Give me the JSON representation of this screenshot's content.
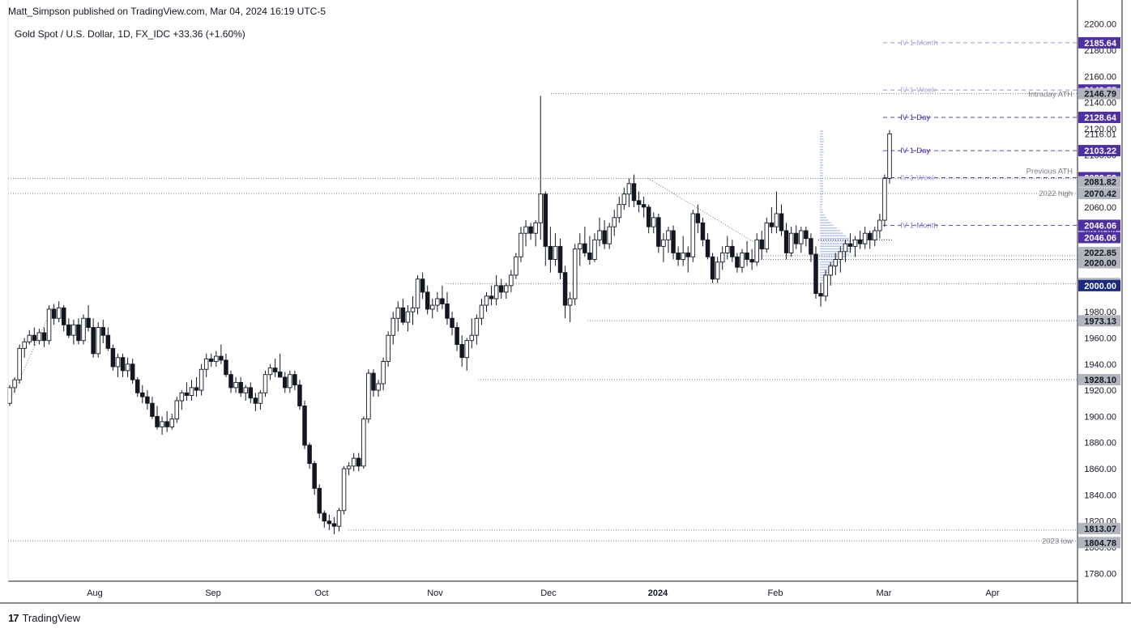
{
  "header": {
    "publisher": "Matt_Simpson published on TradingView.com, Mar 04, 2024 16:19 UTC-5",
    "symbol_line": "Gold Spot / U.S. Dollar, 1D, FX_IDC  +33.36 (+1.60%)"
  },
  "footer": {
    "logo_mark": "17",
    "logo_text": "TradingView"
  },
  "chart_data": {
    "type": "candlestick",
    "y_ticks": [
      "2200.00",
      "2180.00",
      "2160.00",
      "2140.00",
      "2120.00",
      "2100.00",
      "2080.00",
      "2060.00",
      "2040.00",
      "2020.00",
      "2000.00",
      "1980.00",
      "1960.00",
      "1940.00",
      "1920.00",
      "1900.00",
      "1880.00",
      "1860.00",
      "1840.00",
      "1820.00",
      "1800.00",
      "1780.00"
    ],
    "ylim": [
      1774,
      2206
    ],
    "x_labels": [
      "Aug",
      "Sep",
      "Oct",
      "Nov",
      "Dec",
      "2024",
      "Feb",
      "Mar",
      "Apr"
    ],
    "x_label_bold": [
      false,
      false,
      false,
      false,
      false,
      true,
      false,
      false,
      false
    ],
    "candles": [
      [
        1910,
        1924,
        1908,
        1922
      ],
      [
        1922,
        1930,
        1918,
        1928
      ],
      [
        1928,
        1955,
        1925,
        1952
      ],
      [
        1952,
        1960,
        1945,
        1957
      ],
      [
        1957,
        1966,
        1955,
        1962
      ],
      [
        1962,
        1968,
        1954,
        1958
      ],
      [
        1958,
        1967,
        1955,
        1964
      ],
      [
        1964,
        1968,
        1953,
        1958
      ],
      [
        1958,
        1985,
        1955,
        1982
      ],
      [
        1982,
        1986,
        1970,
        1975
      ],
      [
        1975,
        1988,
        1972,
        1983
      ],
      [
        1983,
        1985,
        1965,
        1970
      ],
      [
        1970,
        1975,
        1960,
        1962
      ],
      [
        1962,
        1974,
        1955,
        1970
      ],
      [
        1970,
        1975,
        1955,
        1958
      ],
      [
        1958,
        1978,
        1955,
        1975
      ],
      [
        1975,
        1985,
        1965,
        1968
      ],
      [
        1968,
        1975,
        1945,
        1948
      ],
      [
        1948,
        1972,
        1945,
        1968
      ],
      [
        1968,
        1974,
        1956,
        1962
      ],
      [
        1962,
        1968,
        1950,
        1952
      ],
      [
        1952,
        1955,
        1935,
        1938
      ],
      [
        1938,
        1948,
        1930,
        1945
      ],
      [
        1945,
        1948,
        1930,
        1935
      ],
      [
        1935,
        1945,
        1930,
        1940
      ],
      [
        1940,
        1944,
        1925,
        1928
      ],
      [
        1928,
        1930,
        1915,
        1918
      ],
      [
        1918,
        1924,
        1910,
        1915
      ],
      [
        1915,
        1920,
        1905,
        1910
      ],
      [
        1910,
        1915,
        1898,
        1900
      ],
      [
        1900,
        1908,
        1890,
        1892
      ],
      [
        1892,
        1900,
        1886,
        1896
      ],
      [
        1896,
        1904,
        1888,
        1892
      ],
      [
        1892,
        1902,
        1890,
        1898
      ],
      [
        1898,
        1915,
        1895,
        1912
      ],
      [
        1912,
        1920,
        1905,
        1918
      ],
      [
        1918,
        1926,
        1912,
        1916
      ],
      [
        1916,
        1928,
        1912,
        1922
      ],
      [
        1922,
        1930,
        1915,
        1920
      ],
      [
        1920,
        1940,
        1916,
        1936
      ],
      [
        1936,
        1948,
        1930,
        1944
      ],
      [
        1944,
        1948,
        1938,
        1942
      ],
      [
        1942,
        1950,
        1938,
        1946
      ],
      [
        1946,
        1955,
        1940,
        1943
      ],
      [
        1943,
        1948,
        1930,
        1932
      ],
      [
        1932,
        1935,
        1918,
        1922
      ],
      [
        1922,
        1930,
        1918,
        1926
      ],
      [
        1926,
        1930,
        1915,
        1918
      ],
      [
        1918,
        1924,
        1912,
        1922
      ],
      [
        1922,
        1926,
        1910,
        1914
      ],
      [
        1914,
        1918,
        1904,
        1910
      ],
      [
        1910,
        1920,
        1905,
        1918
      ],
      [
        1918,
        1935,
        1915,
        1932
      ],
      [
        1932,
        1940,
        1928,
        1937
      ],
      [
        1937,
        1944,
        1930,
        1934
      ],
      [
        1934,
        1948,
        1930,
        1930
      ],
      [
        1930,
        1934,
        1918,
        1922
      ],
      [
        1922,
        1935,
        1918,
        1932
      ],
      [
        1932,
        1935,
        1920,
        1924
      ],
      [
        1924,
        1928,
        1905,
        1908
      ],
      [
        1908,
        1912,
        1875,
        1878
      ],
      [
        1878,
        1880,
        1860,
        1864
      ],
      [
        1864,
        1866,
        1840,
        1845
      ],
      [
        1845,
        1848,
        1822,
        1826
      ],
      [
        1826,
        1828,
        1815,
        1820
      ],
      [
        1820,
        1825,
        1813,
        1818
      ],
      [
        1818,
        1823,
        1810,
        1816
      ],
      [
        1816,
        1830,
        1812,
        1828
      ],
      [
        1828,
        1862,
        1825,
        1860
      ],
      [
        1860,
        1865,
        1855,
        1862
      ],
      [
        1862,
        1872,
        1858,
        1868
      ],
      [
        1868,
        1872,
        1858,
        1862
      ],
      [
        1862,
        1900,
        1860,
        1898
      ],
      [
        1898,
        1936,
        1895,
        1933
      ],
      [
        1933,
        1936,
        1915,
        1920
      ],
      [
        1920,
        1928,
        1915,
        1925
      ],
      [
        1925,
        1945,
        1920,
        1942
      ],
      [
        1942,
        1965,
        1938,
        1962
      ],
      [
        1962,
        1980,
        1955,
        1975
      ],
      [
        1975,
        1988,
        1965,
        1983
      ],
      [
        1983,
        1990,
        1970,
        1972
      ],
      [
        1972,
        1985,
        1965,
        1980
      ],
      [
        1980,
        1992,
        1970,
        1983
      ],
      [
        1983,
        2008,
        1978,
        2005
      ],
      [
        2005,
        2010,
        1990,
        1995
      ],
      [
        1995,
        2000,
        1978,
        1982
      ],
      [
        1982,
        1990,
        1975,
        1985
      ],
      [
        1985,
        1995,
        1980,
        1990
      ],
      [
        1990,
        2000,
        1982,
        1986
      ],
      [
        1986,
        1995,
        1970,
        1975
      ],
      [
        1975,
        1980,
        1962,
        1968
      ],
      [
        1968,
        1972,
        1950,
        1955
      ],
      [
        1955,
        1962,
        1938,
        1945
      ],
      [
        1945,
        1960,
        1935,
        1958
      ],
      [
        1958,
        1975,
        1952,
        1962
      ],
      [
        1962,
        1978,
        1955,
        1975
      ],
      [
        1975,
        1990,
        1970,
        1985
      ],
      [
        1985,
        1995,
        1980,
        1992
      ],
      [
        1992,
        2000,
        1985,
        1990
      ],
      [
        1990,
        2008,
        1985,
        2000
      ],
      [
        2000,
        2005,
        1990,
        1995
      ],
      [
        1995,
        2002,
        1990,
        2000
      ],
      [
        2000,
        2012,
        1995,
        2008
      ],
      [
        2008,
        2025,
        2005,
        2022
      ],
      [
        2022,
        2045,
        2018,
        2040
      ],
      [
        2040,
        2050,
        2030,
        2045
      ],
      [
        2045,
        2048,
        2035,
        2040
      ],
      [
        2040,
        2050,
        2030,
        2048
      ],
      [
        2048,
        2145,
        2035,
        2070
      ],
      [
        2070,
        2072,
        2015,
        2030
      ],
      [
        2030,
        2045,
        2010,
        2020
      ],
      [
        2020,
        2040,
        2015,
        2030
      ],
      [
        2030,
        2036,
        2005,
        2010
      ],
      [
        2010,
        2015,
        1975,
        1985
      ],
      [
        1985,
        1995,
        1972,
        1990
      ],
      [
        1990,
        2032,
        1985,
        2028
      ],
      [
        2028,
        2040,
        2015,
        2032
      ],
      [
        2032,
        2045,
        2022,
        2025
      ],
      [
        2025,
        2038,
        2016,
        2020
      ],
      [
        2020,
        2040,
        2018,
        2035
      ],
      [
        2035,
        2052,
        2030,
        2042
      ],
      [
        2042,
        2050,
        2028,
        2032
      ],
      [
        2032,
        2048,
        2028,
        2045
      ],
      [
        2045,
        2058,
        2038,
        2052
      ],
      [
        2052,
        2068,
        2048,
        2062
      ],
      [
        2062,
        2075,
        2058,
        2070
      ],
      [
        2070,
        2082,
        2060,
        2078
      ],
      [
        2078,
        2085,
        2060,
        2065
      ],
      [
        2065,
        2072,
        2056,
        2062
      ],
      [
        2062,
        2068,
        2052,
        2060
      ],
      [
        2060,
        2062,
        2040,
        2045
      ],
      [
        2045,
        2056,
        2040,
        2052
      ],
      [
        2052,
        2055,
        2025,
        2030
      ],
      [
        2030,
        2040,
        2018,
        2035
      ],
      [
        2035,
        2045,
        2025,
        2042
      ],
      [
        2042,
        2046,
        2020,
        2025
      ],
      [
        2025,
        2030,
        2015,
        2020
      ],
      [
        2020,
        2038,
        2015,
        2025
      ],
      [
        2025,
        2030,
        2010,
        2022
      ],
      [
        2022,
        2058,
        2018,
        2055
      ],
      [
        2055,
        2062,
        2040,
        2048
      ],
      [
        2048,
        2052,
        2030,
        2035
      ],
      [
        2035,
        2040,
        2020,
        2022
      ],
      [
        2022,
        2025,
        2002,
        2005
      ],
      [
        2005,
        2022,
        2002,
        2018
      ],
      [
        2018,
        2030,
        2012,
        2025
      ],
      [
        2025,
        2038,
        2020,
        2030
      ],
      [
        2030,
        2035,
        2018,
        2022
      ],
      [
        2022,
        2025,
        2010,
        2014
      ],
      [
        2014,
        2028,
        2010,
        2025
      ],
      [
        2025,
        2034,
        2015,
        2020
      ],
      [
        2020,
        2028,
        2012,
        2018
      ],
      [
        2018,
        2040,
        2015,
        2035
      ],
      [
        2035,
        2042,
        2020,
        2028
      ],
      [
        2028,
        2052,
        2025,
        2048
      ],
      [
        2048,
        2060,
        2040,
        2045
      ],
      [
        2045,
        2072,
        2040,
        2055
      ],
      [
        2055,
        2062,
        2038,
        2042
      ],
      [
        2042,
        2048,
        2020,
        2025
      ],
      [
        2025,
        2045,
        2022,
        2040
      ],
      [
        2040,
        2046,
        2028,
        2032
      ],
      [
        2032,
        2045,
        2025,
        2042
      ],
      [
        2042,
        2045,
        2030,
        2036
      ],
      [
        2036,
        2040,
        2018,
        2024
      ],
      [
        2024,
        2030,
        1990,
        1994
      ],
      [
        1994,
        2002,
        1984,
        1992
      ],
      [
        1992,
        2012,
        1988,
        2008
      ],
      [
        2008,
        2018,
        2000,
        2015
      ],
      [
        2015,
        2025,
        2008,
        2020
      ],
      [
        2020,
        2030,
        2010,
        2026
      ],
      [
        2026,
        2035,
        2018,
        2032
      ],
      [
        2032,
        2040,
        2025,
        2030
      ],
      [
        2030,
        2038,
        2022,
        2035
      ],
      [
        2035,
        2042,
        2028,
        2032
      ],
      [
        2032,
        2045,
        2028,
        2040
      ],
      [
        2040,
        2042,
        2028,
        2035
      ],
      [
        2035,
        2045,
        2030,
        2042
      ],
      [
        2042,
        2055,
        2036,
        2050
      ],
      [
        2050,
        2085,
        2045,
        2082
      ],
      [
        2082,
        2119,
        2078,
        2116
      ]
    ],
    "price_levels": [
      {
        "label": "2185.64",
        "price": 2185.64,
        "bg": "#4e2fa6",
        "fg": "#ffffff",
        "line": "dashed"
      },
      {
        "label": "2149.55",
        "price": 2149.55,
        "bg": "#4e2fa6",
        "fg": "#ffffff",
        "line": "dashed"
      },
      {
        "label": "2146.79",
        "price": 2146.79,
        "bg": "#b2b5be",
        "fg": "#131722",
        "line": "dotted"
      },
      {
        "label": "2128.64",
        "price": 2128.64,
        "bg": "#4e2fa6",
        "fg": "#ffffff",
        "line": "dashed"
      },
      {
        "label": "2116.01",
        "price": 2116.01,
        "bg": "",
        "fg": "#131722",
        "line": "none"
      },
      {
        "label": "2103.22",
        "price": 2103.22,
        "bg": "#4e2fa6",
        "fg": "#ffffff",
        "line": "dashed"
      },
      {
        "label": "2082.52",
        "price": 2082.52,
        "bg": "#4e2fa6",
        "fg": "#ffffff",
        "line": "dashed"
      },
      {
        "label": "2081.82",
        "price": 2081.82,
        "bg": "#b2b5be",
        "fg": "#131722",
        "line": "dotted"
      },
      {
        "label": "2070.42",
        "price": 2070.42,
        "bg": "#b2b5be",
        "fg": "#131722",
        "line": "dotted"
      },
      {
        "label": "2046.06",
        "price": 2046.06,
        "bg": "#4e2fa6",
        "fg": "#ffffff",
        "line": "dashed"
      },
      {
        "label": "2046.06",
        "price": 2046.06,
        "bg": "#4e2fa6",
        "fg": "#ffffff",
        "line": "none"
      },
      {
        "label": "2022.85",
        "price": 2022.85,
        "bg": "#b2b5be",
        "fg": "#131722",
        "line": "dotted"
      },
      {
        "label": "2020.00",
        "price": 2020.0,
        "bg": "#b2b5be",
        "fg": "#131722",
        "line": "dotted"
      },
      {
        "label": "2001.60",
        "price": 2001.6,
        "bg": "#b2b5be",
        "fg": "#131722",
        "line": "dotted"
      },
      {
        "label": "2000.00",
        "price": 2000.0,
        "bg": "#1a2a80",
        "fg": "#ffffff",
        "line": "none"
      },
      {
        "label": "1973.13",
        "price": 1973.13,
        "bg": "#b2b5be",
        "fg": "#131722",
        "line": "dotted"
      },
      {
        "label": "1928.10",
        "price": 1928.1,
        "bg": "#b2b5be",
        "fg": "#131722",
        "line": "dotted"
      },
      {
        "label": "1813.07",
        "price": 1813.07,
        "bg": "#b2b5be",
        "fg": "#131722",
        "line": "dotted"
      },
      {
        "label": "1804.78",
        "price": 1804.78,
        "bg": "#b2b5be",
        "fg": "#131722",
        "line": "dotted"
      }
    ],
    "annotations": [
      {
        "text": "-IV 1-Month",
        "price": 2185.64,
        "color": "#b3a8e0"
      },
      {
        "text": "-IV 1-Week",
        "price": 2149.55,
        "color": "#b3a8e0"
      },
      {
        "text": "Intraday ATH",
        "price": 2146.79,
        "color": "#787b86"
      },
      {
        "text": "-IV 1-Day",
        "price": 2128.64,
        "color": "#4e2fa6"
      },
      {
        "text": "-IV 1-Day",
        "price": 2103.22,
        "color": "#4e2fa6"
      },
      {
        "text": "Previous ATH",
        "price": 2082.52,
        "color": "#787b86"
      },
      {
        "text": "-IV 1-Week",
        "price": 2082.52,
        "color": "#b3a8e0"
      },
      {
        "text": "2022 high",
        "price": 2070.42,
        "color": "#787b86"
      },
      {
        "text": "-IV 1-Month",
        "price": 2046.06,
        "color": "#8c7fc8"
      },
      {
        "text": "2023 low",
        "price": 1804.78,
        "color": "#787b86"
      }
    ]
  }
}
